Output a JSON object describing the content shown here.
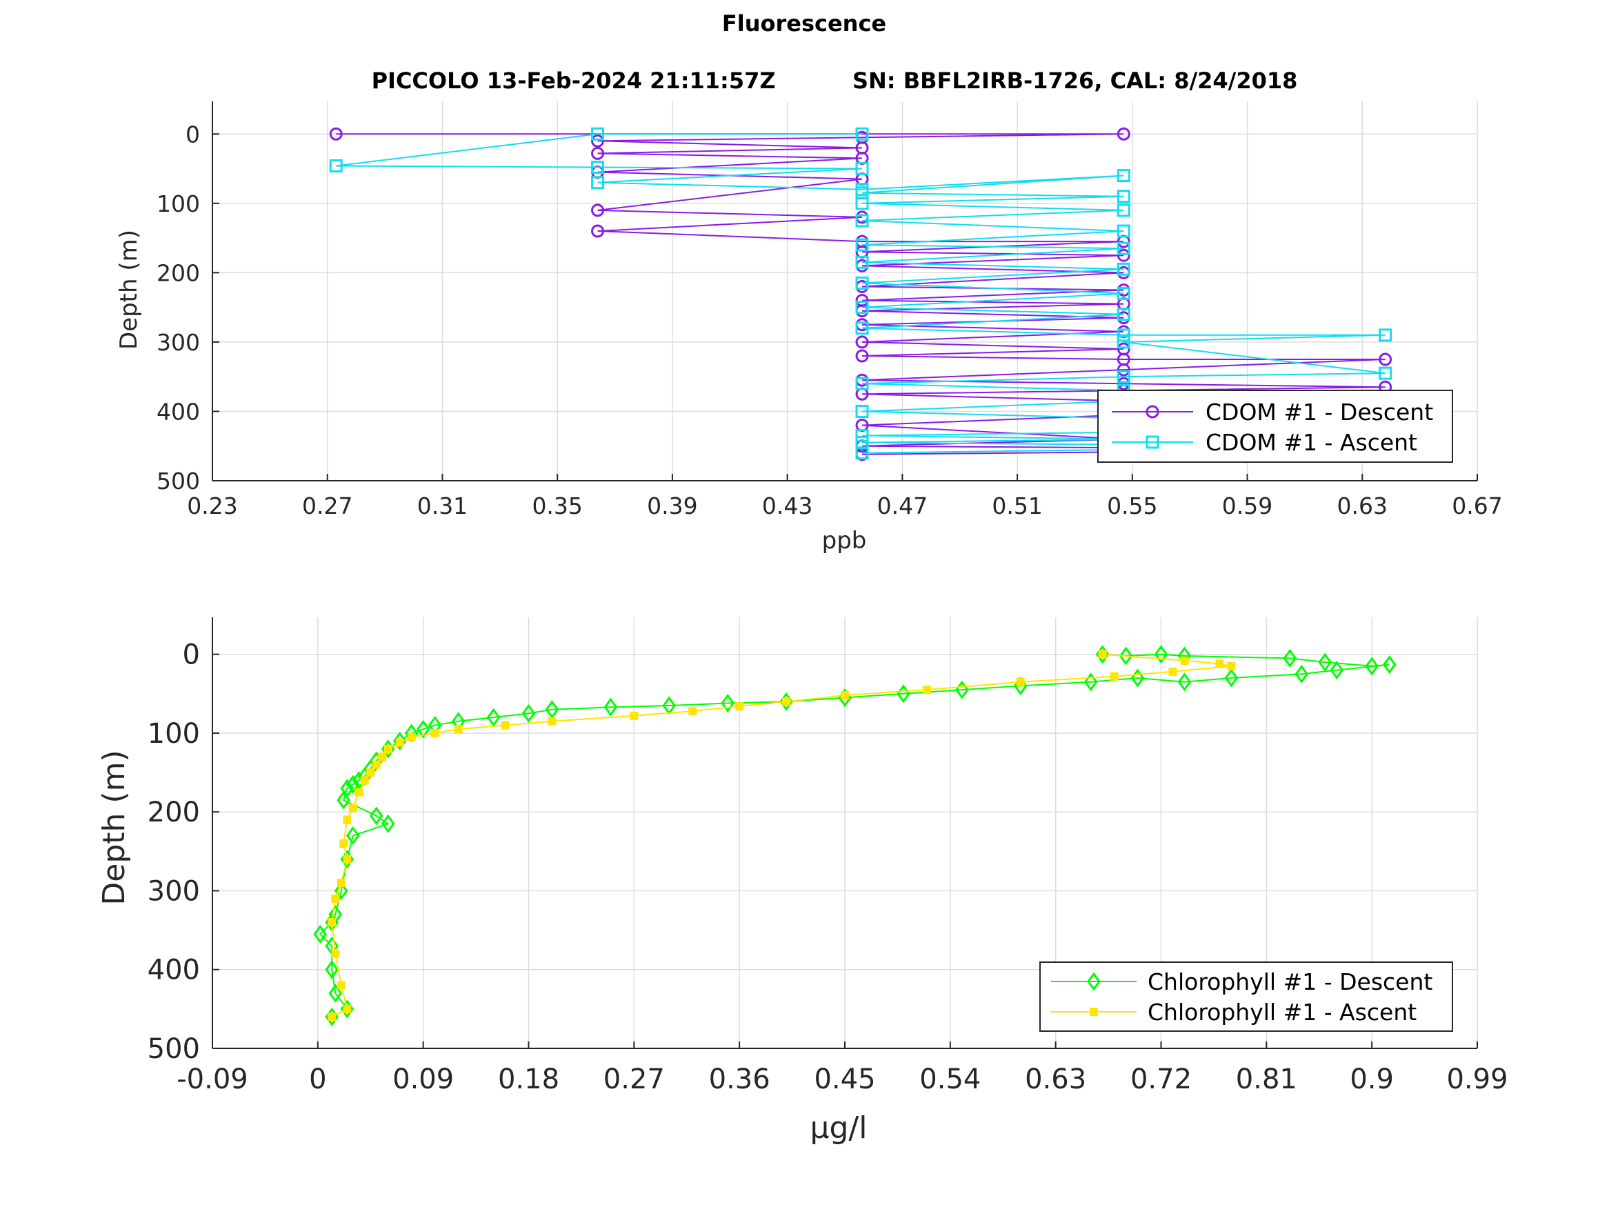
{
  "figure_title": "Fluorescence",
  "chart_data": [
    {
      "type": "line",
      "title": "PICCOLO 13-Feb-2024 21:11:57Z          SN: BBFL2IRB-1726, CAL: 8/24/2018",
      "xlabel": "ppb",
      "ylabel": "Depth (m)",
      "xlim": [
        0.23,
        0.67
      ],
      "ylim": [
        500,
        -47
      ],
      "y_reversed": true,
      "xticks": [
        "0.23",
        "0.27",
        "0.31",
        "0.35",
        "0.39",
        "0.43",
        "0.47",
        "0.51",
        "0.55",
        "0.59",
        "0.63",
        "0.67"
      ],
      "yticks": [
        "0",
        "100",
        "200",
        "300",
        "400",
        "500"
      ],
      "grid": true,
      "legend_position": "bottom-right",
      "series": [
        {
          "name": "CDOM #1 - Descent",
          "color": "#8a1be6",
          "marker": "circle",
          "x": [
            0.273,
            0.547,
            0.456,
            0.364,
            0.456,
            0.364,
            0.456,
            0.364,
            0.456,
            0.364,
            0.456,
            0.364,
            0.456,
            0.547,
            0.456,
            0.547,
            0.456,
            0.547,
            0.456,
            0.547,
            0.456,
            0.547,
            0.456,
            0.547,
            0.456,
            0.547,
            0.456,
            0.547,
            0.456,
            0.547,
            0.638,
            0.547,
            0.456,
            0.547,
            0.638,
            0.547,
            0.456,
            0.547,
            0.638,
            0.547,
            0.456,
            0.547,
            0.456,
            0.638,
            0.456
          ],
          "y": [
            0,
            0,
            5,
            10,
            20,
            28,
            35,
            55,
            65,
            110,
            120,
            140,
            155,
            155,
            170,
            175,
            190,
            200,
            220,
            225,
            240,
            245,
            255,
            265,
            275,
            285,
            300,
            310,
            320,
            325,
            325,
            340,
            355,
            360,
            365,
            370,
            375,
            385,
            395,
            405,
            420,
            440,
            450,
            455,
            462
          ]
        },
        {
          "name": "CDOM #1 - Ascent",
          "color": "#12dcf0",
          "marker": "square",
          "x": [
            0.456,
            0.364,
            0.273,
            0.364,
            0.456,
            0.364,
            0.456,
            0.547,
            0.456,
            0.547,
            0.456,
            0.547,
            0.456,
            0.547,
            0.456,
            0.547,
            0.456,
            0.547,
            0.456,
            0.547,
            0.456,
            0.547,
            0.456,
            0.547,
            0.638,
            0.547,
            0.638,
            0.547,
            0.456,
            0.547,
            0.638,
            0.547,
            0.456,
            0.547,
            0.638,
            0.547,
            0.456,
            0.547,
            0.456,
            0.547,
            0.638,
            0.547,
            0.456
          ],
          "y": [
            0,
            0,
            46,
            48,
            50,
            70,
            80,
            60,
            85,
            90,
            100,
            110,
            125,
            140,
            160,
            165,
            185,
            195,
            215,
            230,
            250,
            260,
            280,
            290,
            290,
            300,
            345,
            350,
            360,
            370,
            378,
            385,
            400,
            410,
            420,
            430,
            435,
            440,
            445,
            448,
            450,
            455,
            460
          ]
        }
      ]
    },
    {
      "type": "line",
      "xlabel": "μg/l",
      "ylabel": "Depth (m)",
      "xlim": [
        -0.09,
        0.99
      ],
      "ylim": [
        500,
        -47
      ],
      "y_reversed": true,
      "xticks": [
        "-0.09",
        "0",
        "0.09",
        "0.18",
        "0.27",
        "0.36",
        "0.45",
        "0.54",
        "0.63",
        "0.72",
        "0.81",
        "0.9",
        "0.99"
      ],
      "yticks": [
        "0",
        "100",
        "200",
        "300",
        "400",
        "500"
      ],
      "grid": true,
      "legend_position": "bottom-right",
      "series": [
        {
          "name": "Chlorophyll #1 - Descent",
          "color": "#00ff00",
          "marker": "diamond",
          "x": [
            0.67,
            0.69,
            0.72,
            0.74,
            0.83,
            0.86,
            0.9,
            0.915,
            0.87,
            0.84,
            0.78,
            0.74,
            0.7,
            0.66,
            0.6,
            0.55,
            0.5,
            0.45,
            0.4,
            0.35,
            0.3,
            0.25,
            0.2,
            0.18,
            0.15,
            0.12,
            0.1,
            0.09,
            0.08,
            0.07,
            0.06,
            0.05,
            0.045,
            0.04,
            0.035,
            0.03,
            0.025,
            0.022,
            0.05,
            0.06,
            0.03,
            0.025,
            0.02,
            0.015,
            0.012,
            0.002,
            0.012,
            0.012,
            0.015,
            0.025,
            0.012
          ],
          "y": [
            0,
            2,
            0,
            2,
            5,
            10,
            15,
            13,
            20,
            25,
            30,
            35,
            30,
            35,
            40,
            45,
            50,
            55,
            60,
            62,
            65,
            67,
            70,
            75,
            80,
            85,
            90,
            95,
            100,
            110,
            120,
            135,
            145,
            155,
            160,
            165,
            170,
            185,
            205,
            215,
            230,
            260,
            300,
            330,
            340,
            355,
            370,
            400,
            430,
            450,
            460
          ]
        },
        {
          "name": "Chlorophyll #1 - Ascent",
          "color": "#ffe400",
          "marker": "square",
          "x": [
            0.67,
            0.74,
            0.77,
            0.78,
            0.73,
            0.68,
            0.6,
            0.52,
            0.45,
            0.4,
            0.36,
            0.32,
            0.27,
            0.2,
            0.16,
            0.12,
            0.1,
            0.08,
            0.07,
            0.06,
            0.055,
            0.05,
            0.045,
            0.04,
            0.035,
            0.03,
            0.025,
            0.022,
            0.025,
            0.02,
            0.015,
            0.012,
            0.015,
            0.02,
            0.025,
            0.012
          ],
          "y": [
            0,
            8,
            12,
            15,
            22,
            28,
            35,
            45,
            52,
            60,
            66,
            72,
            78,
            85,
            90,
            95,
            100,
            105,
            112,
            120,
            130,
            140,
            150,
            160,
            175,
            195,
            210,
            240,
            260,
            290,
            310,
            340,
            380,
            420,
            450,
            460
          ]
        }
      ]
    }
  ]
}
